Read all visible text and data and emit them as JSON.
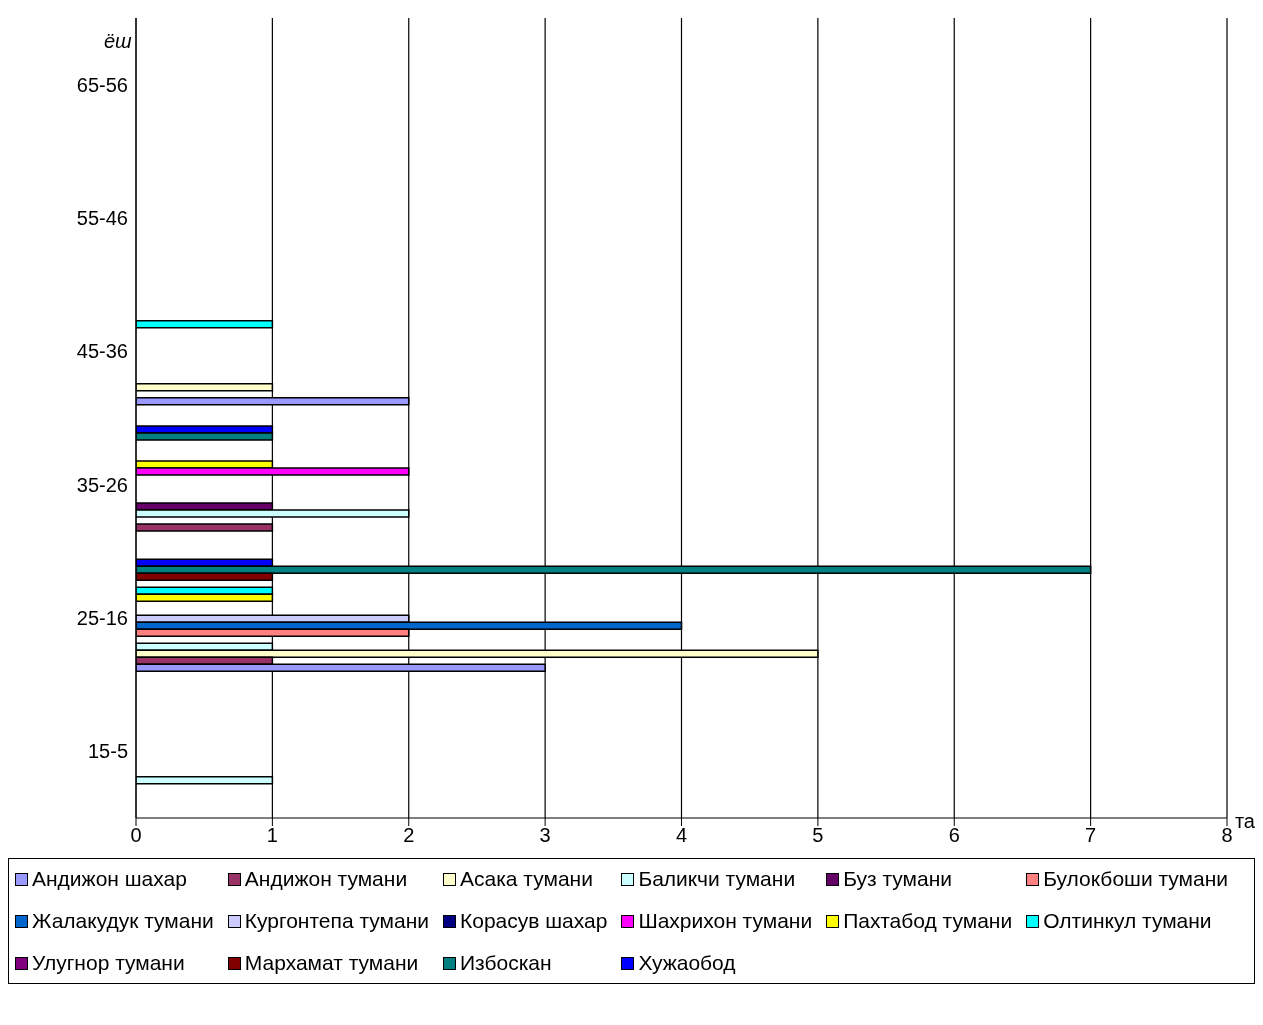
{
  "chart_data": {
    "type": "bar",
    "orientation": "horizontal",
    "ylabel": "ёш",
    "xlabel": "та",
    "categories": [
      "65-56",
      "55-46",
      "45-36",
      "35-26",
      "25-16",
      "15-5"
    ],
    "xlim": [
      0,
      8
    ],
    "xticks": [
      0,
      1,
      2,
      3,
      4,
      5,
      6,
      7,
      8
    ],
    "grid": "x",
    "legend": "bottom",
    "series": [
      {
        "name": "Андижон шахар",
        "color": "#9999ff",
        "values": [
          0,
          0,
          2,
          0,
          3,
          0
        ]
      },
      {
        "name": "Андижон тумани",
        "color": "#993366",
        "values": [
          0,
          0,
          0,
          1,
          1,
          0
        ]
      },
      {
        "name": "Асака тумани",
        "color": "#ffffcc",
        "values": [
          0,
          0,
          1,
          0,
          5,
          0
        ]
      },
      {
        "name": "Баликчи тумани",
        "color": "#ccffff",
        "values": [
          0,
          0,
          0,
          2,
          1,
          1
        ]
      },
      {
        "name": "Буз тумани",
        "color": "#660066",
        "values": [
          0,
          0,
          0,
          1,
          0,
          0
        ]
      },
      {
        "name": "Булокбоши тумани",
        "color": "#ff8080",
        "values": [
          0,
          0,
          0,
          0,
          2,
          0
        ]
      },
      {
        "name": "Жалакудук тумани",
        "color": "#0066cc",
        "values": [
          0,
          0,
          0,
          0,
          4,
          0
        ]
      },
      {
        "name": "Кургонтепа тумани",
        "color": "#ccccff",
        "values": [
          0,
          0,
          0,
          0,
          2,
          0
        ]
      },
      {
        "name": "Корасув шахар",
        "color": "#000080",
        "values": [
          0,
          0,
          0,
          0,
          0,
          0
        ]
      },
      {
        "name": "Шахрихон тумани",
        "color": "#ff00ff",
        "values": [
          0,
          0,
          0,
          2,
          0,
          0
        ]
      },
      {
        "name": "Пахтабод тумани",
        "color": "#ffff00",
        "values": [
          0,
          0,
          0,
          1,
          1,
          0
        ]
      },
      {
        "name": "Олтинкул тумани",
        "color": "#00ffff",
        "values": [
          0,
          0,
          1,
          0,
          1,
          0
        ]
      },
      {
        "name": "Улугнор тумани",
        "color": "#800080",
        "values": [
          0,
          0,
          0,
          0,
          0,
          0
        ]
      },
      {
        "name": "Мархамат тумани",
        "color": "#800000",
        "values": [
          0,
          0,
          0,
          0,
          1,
          0
        ]
      },
      {
        "name": "Избоскан",
        "color": "#008080",
        "values": [
          0,
          0,
          0,
          1,
          7,
          0
        ]
      },
      {
        "name": "Хужаобод",
        "color": "#0000ff",
        "values": [
          0,
          0,
          0,
          1,
          1,
          0
        ]
      }
    ]
  }
}
